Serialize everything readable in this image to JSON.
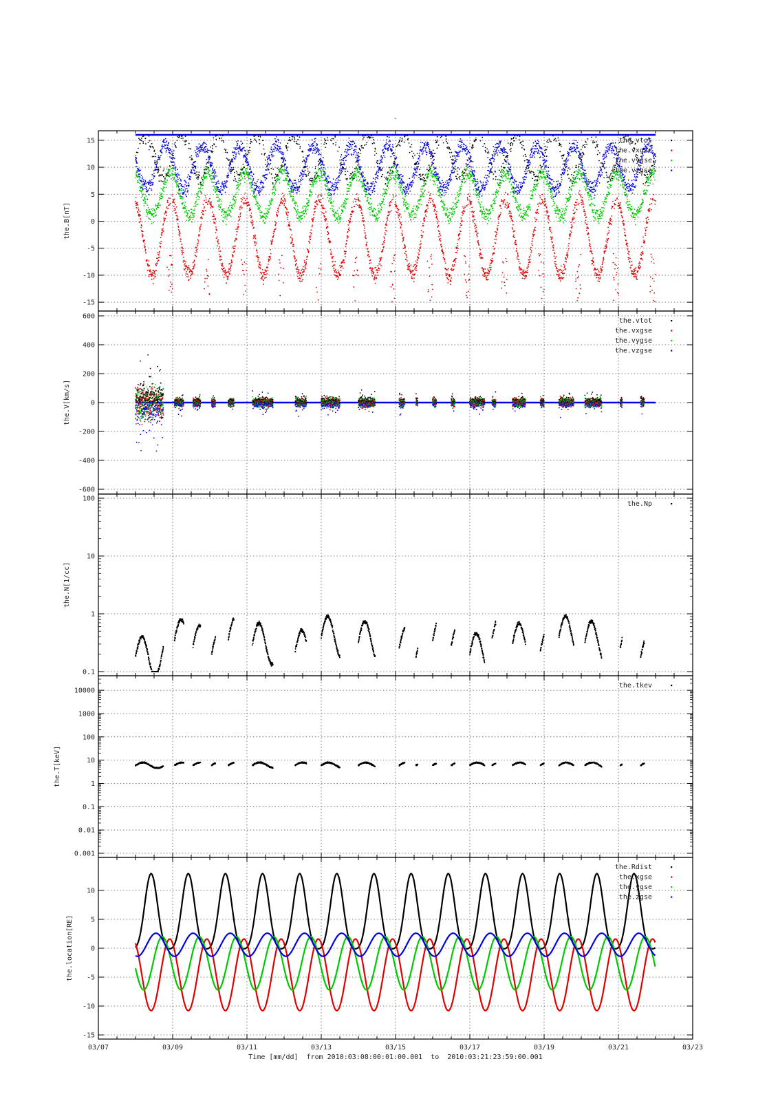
{
  "page_title": "-",
  "colors": {
    "black": "#000000",
    "red": "#e00000",
    "green": "#00c800",
    "blue": "#0000e0",
    "grid": "#555555"
  },
  "chart_data": [
    {
      "type": "scatter",
      "ylabel": "the.B[nT]",
      "yscale": "linear",
      "ylim": [
        -16,
        16
      ],
      "yticks": [
        15,
        10,
        5,
        0,
        -5,
        -10,
        -15
      ],
      "ytick_labels": [
        "15",
        "10",
        "5",
        "0",
        "-5",
        "-10",
        "-15"
      ],
      "legend_placement": "top-right",
      "series": [
        {
          "name": "the.vtot",
          "color": "#000000"
        },
        {
          "name": "the.vxgse",
          "color": "#e00000"
        },
        {
          "name": "the.vygse",
          "color": "#00c800"
        },
        {
          "name": "the.vzgse",
          "color": "#0000e0"
        }
      ],
      "pattern": "bfield"
    },
    {
      "type": "scatter",
      "ylabel": "the.V[km/s]",
      "yscale": "linear",
      "ylim": [
        -600,
        600
      ],
      "yticks": [
        600,
        400,
        200,
        0,
        -200,
        -400,
        -600
      ],
      "ytick_labels": [
        "600",
        "400",
        "200",
        "0",
        "-200",
        "-400",
        "-600"
      ],
      "legend_placement": "top-right",
      "series": [
        {
          "name": "the.vtot",
          "color": "#000000"
        },
        {
          "name": "the.vxgse",
          "color": "#e00000"
        },
        {
          "name": "the.vygse",
          "color": "#00c800"
        },
        {
          "name": "the.vzgse",
          "color": "#0000e0"
        }
      ],
      "pattern": "velocity"
    },
    {
      "type": "scatter",
      "ylabel": "the.N[1/cc]",
      "yscale": "log",
      "ylim": [
        0.1,
        100
      ],
      "yticks": [
        100,
        10,
        1,
        0.1
      ],
      "ytick_labels": [
        "100",
        "10",
        "1",
        "0.1"
      ],
      "legend_placement": "top-right",
      "series": [
        {
          "name": "the.Np",
          "color": "#000000"
        }
      ],
      "pattern": "density"
    },
    {
      "type": "scatter",
      "ylabel": "the.T[keV]",
      "yscale": "log",
      "ylim": [
        0.001,
        30000
      ],
      "yticks": [
        10000,
        1000,
        100,
        10,
        1,
        0.1,
        0.01,
        0.001
      ],
      "ytick_labels": [
        "10000",
        "1000",
        "100",
        "10",
        "1",
        "0.1",
        "0.01",
        "0.001"
      ],
      "legend_placement": "top-right",
      "series": [
        {
          "name": "the.tkev",
          "color": "#000000"
        }
      ],
      "pattern": "temperature"
    },
    {
      "type": "line",
      "ylabel": "the.location[RE]",
      "yscale": "linear",
      "ylim": [
        -15,
        15
      ],
      "yticks": [
        10,
        5,
        0,
        -5,
        -10,
        -15
      ],
      "ytick_labels": [
        "10",
        "5",
        "0",
        "-5",
        "-10",
        "-15"
      ],
      "legend_placement": "top-right",
      "series": [
        {
          "name": "the.Rdist",
          "color": "#000000",
          "mean": 5.2,
          "amplitude": 6.5,
          "phase_day": 0.42
        },
        {
          "name": "the.xgse",
          "color": "#e00000",
          "mean": -4.6,
          "amplitude": 6.2,
          "phase_day": 0.92
        },
        {
          "name": "the.ygse",
          "color": "#00c800",
          "mean": -2.6,
          "amplitude": 4.6,
          "phase_day": 0.72
        },
        {
          "name": "the.zgse",
          "color": "#0000e0",
          "mean": 0.6,
          "amplitude": 2.0,
          "phase_day": 0.55
        }
      ],
      "period_days": 1.0,
      "data_start_day": 8.0,
      "data_end_day": 22.0,
      "pattern": "orbit"
    }
  ],
  "x_axis": {
    "xlim": [
      7,
      23
    ],
    "ticks": [
      7,
      9,
      11,
      13,
      15,
      17,
      19,
      21,
      23
    ],
    "tick_labels": [
      "03/07",
      "03/09",
      "03/11",
      "03/13",
      "03/15",
      "03/17",
      "03/19",
      "03/21",
      "03/23"
    ],
    "xlabel": "Time [mm/dd]  from 2010:03:08:00:01:00.001  to  2010:03:21:23:59:00.001"
  }
}
